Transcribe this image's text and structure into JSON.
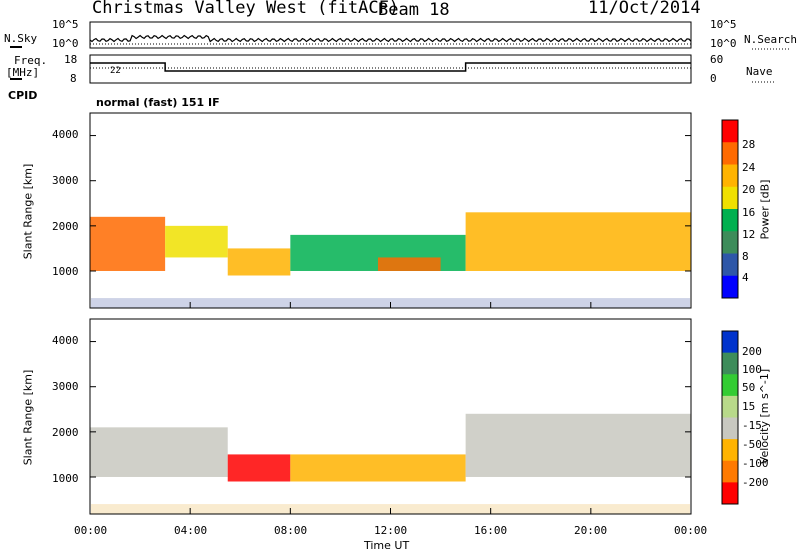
{
  "header": {
    "station": "Christmas Valley West (fitACF)",
    "beam": "Beam 18",
    "date": "11/Oct/2014"
  },
  "side_labels": {
    "nsky": "N.Sky",
    "nsearch": "N.Search",
    "freq": "Freq.",
    "freq_unit": "[MHz]",
    "nave": "Nave",
    "cpid": "CPID"
  },
  "noise_panel": {
    "left_ticks": [
      "10^5",
      "10^0"
    ],
    "right_ticks": [
      "10^5",
      "10^0"
    ]
  },
  "freq_panel": {
    "left_ticks": [
      "18",
      "8"
    ],
    "right_ticks": [
      "60",
      "0"
    ],
    "marker": "22"
  },
  "cpid_text": "normal (fast) 151 IF",
  "range_axis": {
    "label": "Slant Range [km]",
    "ticks": [
      "4000",
      "3000",
      "2000",
      "1000"
    ]
  },
  "time_axis": {
    "label": "Time UT",
    "ticks": [
      "00:00",
      "04:00",
      "08:00",
      "12:00",
      "16:00",
      "20:00",
      "00:00"
    ]
  },
  "chart_data": [
    {
      "type": "heatmap",
      "name": "power",
      "colorbar_label": "Power [dB]",
      "colorbar_ticks": [
        "28",
        "24",
        "20",
        "16",
        "12",
        "8",
        "4"
      ],
      "colors": [
        "#ff0000",
        "#ff6a00",
        "#ffb300",
        "#f0e000",
        "#00b050",
        "#3d8c5a",
        "#2e57a8",
        "#0000ff"
      ],
      "x_unit": "hours UT",
      "xlim": [
        0,
        24
      ],
      "ylim": [
        180,
        4500
      ],
      "regions": [
        {
          "t": [
            0.0,
            3.0
          ],
          "range": [
            1000,
            2200
          ],
          "level": 24
        },
        {
          "t": [
            3.0,
            5.5
          ],
          "range": [
            1300,
            2000
          ],
          "level": 16
        },
        {
          "t": [
            5.5,
            8.0
          ],
          "range": [
            900,
            1500
          ],
          "level": 20
        },
        {
          "t": [
            8.0,
            15.0
          ],
          "range": [
            1000,
            1800
          ],
          "level": 12
        },
        {
          "t": [
            11.5,
            14.0
          ],
          "range": [
            1000,
            1300
          ],
          "level": 26
        },
        {
          "t": [
            15.0,
            24.0
          ],
          "range": [
            1000,
            2300
          ],
          "level": 22
        }
      ]
    },
    {
      "type": "heatmap",
      "name": "velocity",
      "colorbar_label": "Velocity [m s^-1]",
      "colorbar_ticks": [
        "200",
        "100",
        "50",
        "15",
        "-15",
        "-50",
        "-100",
        "-200"
      ],
      "colors": [
        "#0033cc",
        "#3d8c5a",
        "#33cc33",
        "#b8d98a",
        "#c8c8c0",
        "#ffb300",
        "#ff7a00",
        "#ff0000"
      ],
      "x_unit": "hours UT",
      "xlim": [
        0,
        24
      ],
      "ylim": [
        180,
        4500
      ],
      "regions": [
        {
          "t": [
            0.0,
            5.5
          ],
          "range": [
            1000,
            2100
          ],
          "level": 0
        },
        {
          "t": [
            5.5,
            8.0
          ],
          "range": [
            900,
            1500
          ],
          "level": -120
        },
        {
          "t": [
            8.0,
            15.0
          ],
          "range": [
            900,
            1500
          ],
          "level": -40
        },
        {
          "t": [
            15.0,
            24.0
          ],
          "range": [
            1000,
            2400
          ],
          "level": 0
        }
      ]
    }
  ]
}
